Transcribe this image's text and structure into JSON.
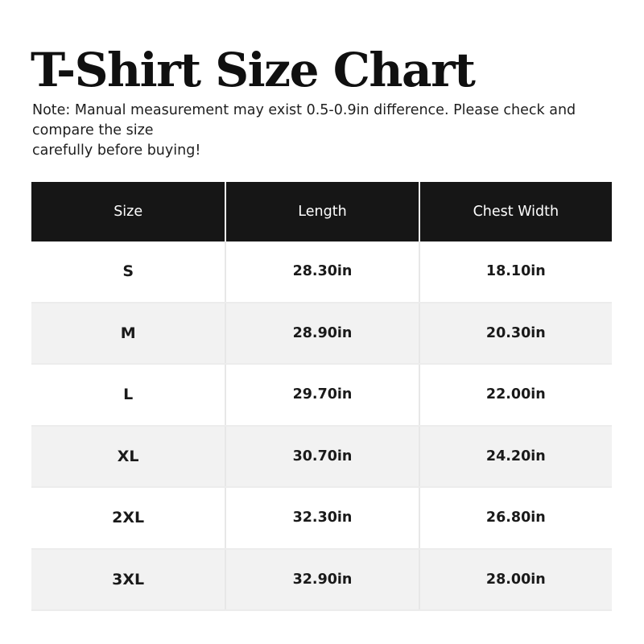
{
  "header": {
    "title": "T-Shirt Size Chart",
    "note": "Note: Manual measurement may exist 0.5-0.9in difference. Please check and compare the size\ncarefully before buying!"
  },
  "table": {
    "columns": [
      "Size",
      "Length",
      "Chest Width"
    ],
    "rows": [
      [
        "S",
        "28.30in",
        "18.10in"
      ],
      [
        "M",
        "28.90in",
        "20.30in"
      ],
      [
        "L",
        "29.70in",
        "22.00in"
      ],
      [
        "XL",
        "30.70in",
        "24.20in"
      ],
      [
        "2XL",
        "32.30in",
        "26.80in"
      ],
      [
        "3XL",
        "32.90in",
        "28.00in"
      ]
    ]
  },
  "colors": {
    "header_bg": "#161616",
    "header_text": "#ffffff",
    "row_bg": "#ffffff",
    "alt_row_bg": "#f2f2f2",
    "body_text": "#1a1a1a"
  }
}
